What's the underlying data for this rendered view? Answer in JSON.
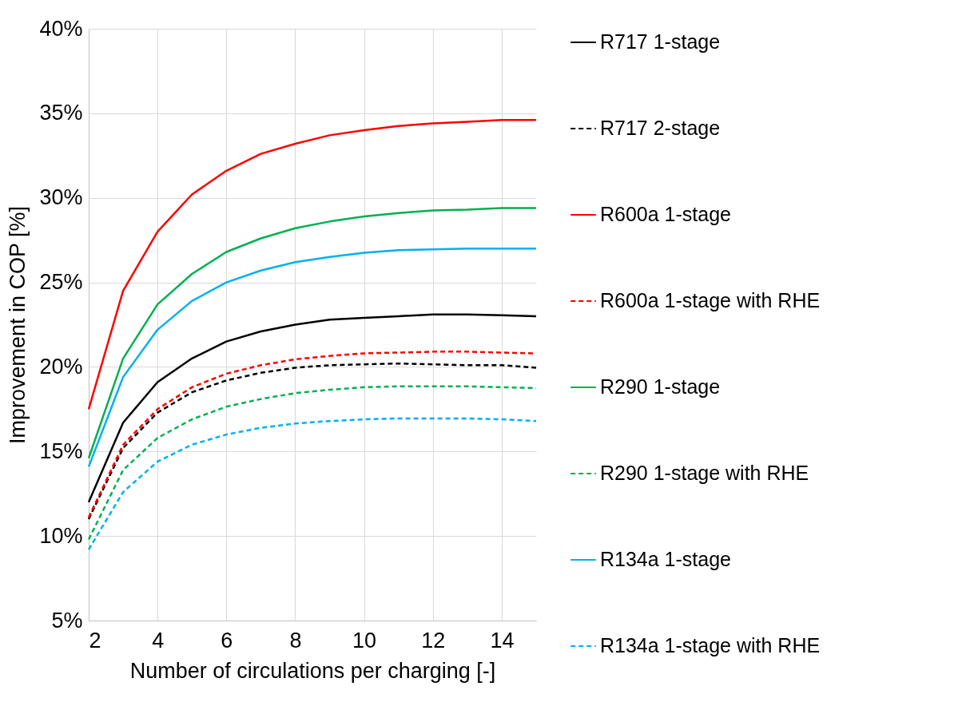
{
  "chart_data": {
    "type": "line",
    "xlabel": "Number of circulations per charging [-]",
    "ylabel": "Improvement in COP [%]",
    "x": [
      2,
      3,
      4,
      5,
      6,
      7,
      8,
      9,
      10,
      11,
      12,
      13,
      14,
      15
    ],
    "xlim": [
      2,
      15
    ],
    "xticks": [
      2,
      4,
      6,
      8,
      10,
      12,
      14
    ],
    "ylim": [
      5,
      40
    ],
    "yticks": [
      {
        "value": 5,
        "label": "5%"
      },
      {
        "value": 10,
        "label": "10%"
      },
      {
        "value": 15,
        "label": "15%"
      },
      {
        "value": 20,
        "label": "20%"
      },
      {
        "value": 25,
        "label": "25%"
      },
      {
        "value": 30,
        "label": "30%"
      },
      {
        "value": 35,
        "label": "35%"
      },
      {
        "value": 40,
        "label": "40%"
      }
    ],
    "grid": true,
    "legend": "right",
    "marker": "none",
    "series": [
      {
        "name": "R717 1-stage",
        "color": "#000000",
        "line_style": "solid",
        "values": [
          12.0,
          16.7,
          19.1,
          20.5,
          21.5,
          22.1,
          22.5,
          22.8,
          22.9,
          23.0,
          23.1,
          23.1,
          23.05,
          23.0
        ]
      },
      {
        "name": "R717 2-stage",
        "color": "#000000",
        "line_style": "dashed",
        "values": [
          11.0,
          15.2,
          17.3,
          18.5,
          19.2,
          19.65,
          19.95,
          20.1,
          20.15,
          20.2,
          20.15,
          20.1,
          20.1,
          19.95
        ]
      },
      {
        "name": "R600a 1-stage",
        "color": "#ff0000",
        "line_style": "solid",
        "values": [
          17.5,
          24.5,
          28.0,
          30.2,
          31.6,
          32.6,
          33.2,
          33.7,
          34.0,
          34.25,
          34.4,
          34.5,
          34.6,
          34.6
        ]
      },
      {
        "name": "R600a 1-stage with RHE",
        "color": "#ff0000",
        "line_style": "dashed",
        "values": [
          11.1,
          15.4,
          17.5,
          18.8,
          19.6,
          20.1,
          20.45,
          20.65,
          20.8,
          20.85,
          20.9,
          20.9,
          20.85,
          20.8
        ]
      },
      {
        "name": "R290 1-stage",
        "color": "#00b050",
        "line_style": "solid",
        "values": [
          14.6,
          20.5,
          23.7,
          25.5,
          26.8,
          27.6,
          28.2,
          28.6,
          28.9,
          29.1,
          29.25,
          29.3,
          29.4,
          29.4
        ]
      },
      {
        "name": "R290 1-stage with RHE",
        "color": "#00b050",
        "line_style": "dashed",
        "values": [
          9.8,
          13.9,
          15.8,
          16.9,
          17.65,
          18.1,
          18.45,
          18.65,
          18.8,
          18.85,
          18.85,
          18.85,
          18.8,
          18.75
        ]
      },
      {
        "name": "R134a 1-stage",
        "color": "#00b0f0",
        "line_style": "solid",
        "values": [
          14.1,
          19.4,
          22.2,
          23.9,
          25.0,
          25.7,
          26.2,
          26.5,
          26.75,
          26.9,
          26.95,
          27.0,
          27.0,
          27.0
        ]
      },
      {
        "name": "R134a 1-stage with RHE",
        "color": "#00b0f0",
        "line_style": "dashed",
        "values": [
          9.2,
          12.6,
          14.4,
          15.4,
          16.0,
          16.4,
          16.65,
          16.8,
          16.9,
          16.95,
          16.95,
          16.95,
          16.9,
          16.8
        ]
      }
    ]
  }
}
